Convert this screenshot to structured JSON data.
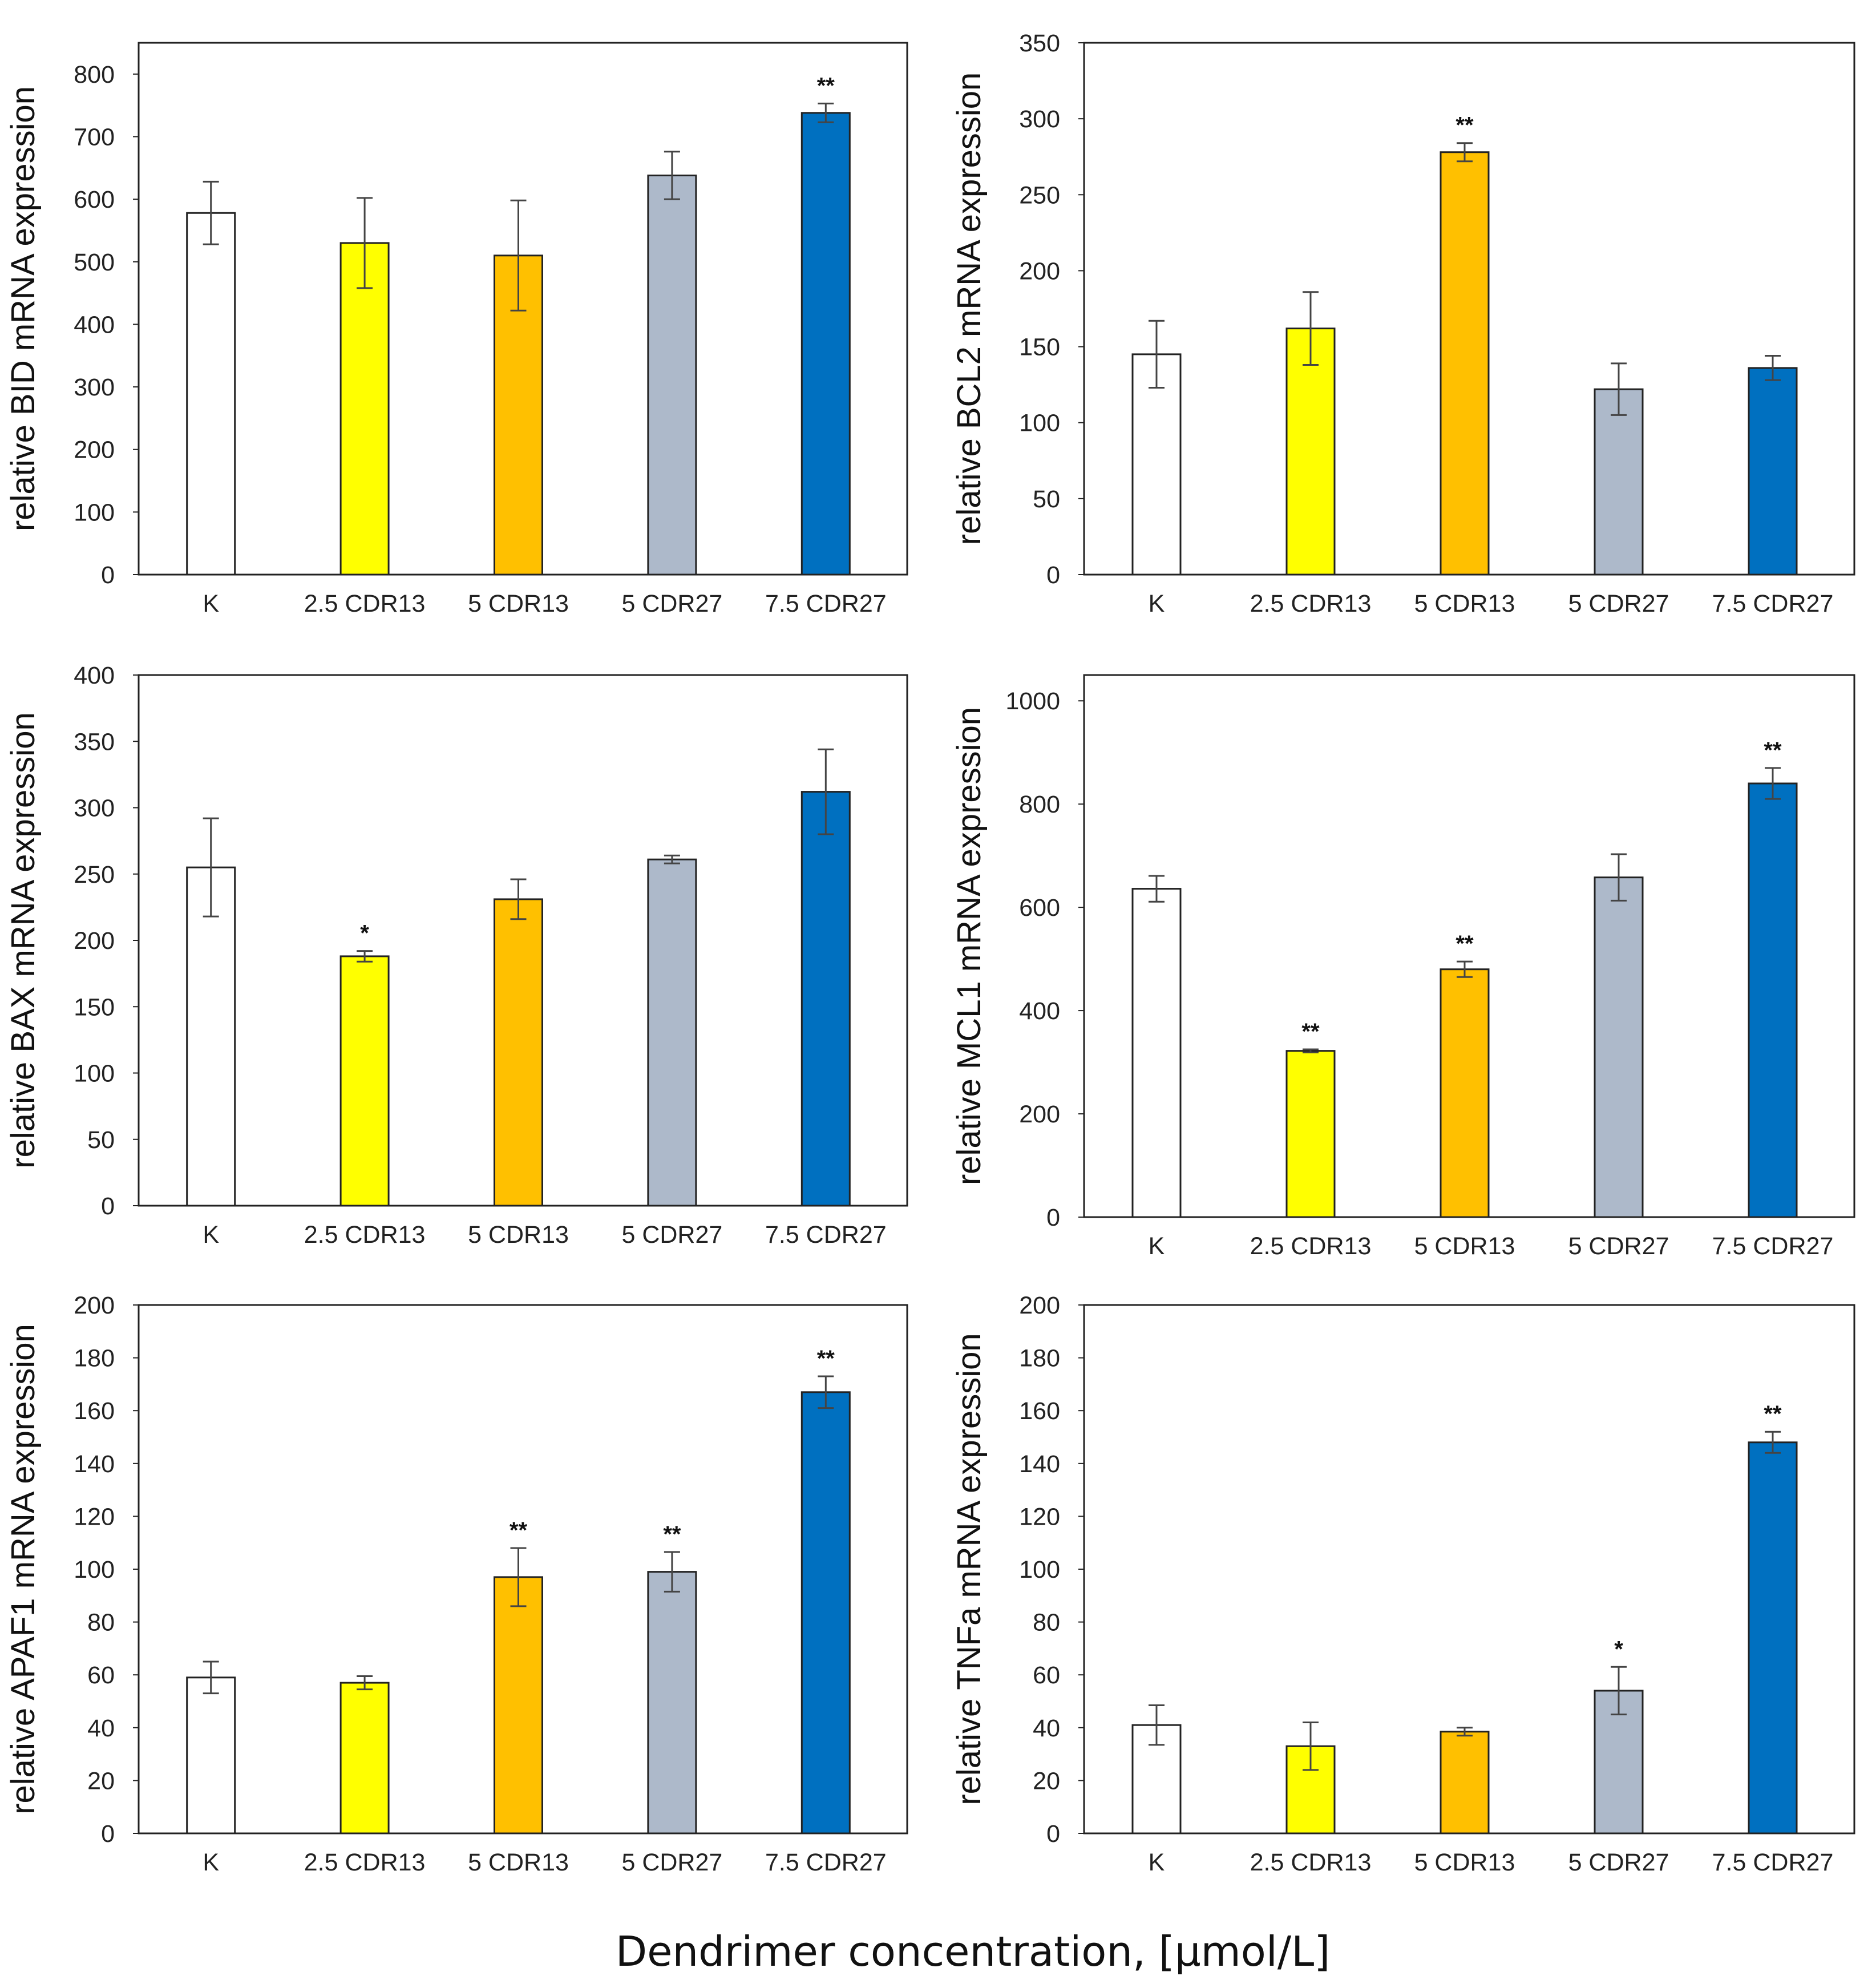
{
  "x_title": "Dendrimer concentration, [µmol/L]",
  "colors": {
    "K": "#ffffff",
    "2.5 CDR13": "#ffff00",
    "5 CDR13": "#ffc000",
    "5 CDR27": "#adb9ca",
    "7.5 CDR27": "#0070c0"
  },
  "chart_data": [
    {
      "type": "bar",
      "ylabel": "relative BID mRNA expression",
      "categories": [
        "K",
        "2.5 CDR13",
        "5 CDR13",
        "5 CDR27",
        "7.5 CDR27"
      ],
      "values": [
        578,
        530,
        510,
        638,
        738
      ],
      "errors": [
        50,
        72,
        88,
        38,
        15
      ],
      "significance": [
        "",
        "",
        "",
        "",
        "**"
      ],
      "ylim": [
        0,
        850
      ],
      "yticks": [
        0,
        100,
        200,
        300,
        400,
        500,
        600,
        700,
        800
      ]
    },
    {
      "type": "bar",
      "ylabel": "relative BCL2 mRNA expression",
      "categories": [
        "K",
        "2.5 CDR13",
        "5 CDR13",
        "5 CDR27",
        "7.5 CDR27"
      ],
      "values": [
        145,
        162,
        278,
        122,
        136
      ],
      "errors": [
        22,
        24,
        6,
        17,
        8
      ],
      "significance": [
        "",
        "",
        "**",
        "",
        ""
      ],
      "ylim": [
        0,
        350
      ],
      "yticks": [
        0,
        50,
        100,
        150,
        200,
        250,
        300,
        350
      ]
    },
    {
      "type": "bar",
      "ylabel": "relative BAX mRNA expression",
      "categories": [
        "K",
        "2.5 CDR13",
        "5 CDR13",
        "5 CDR27",
        "7.5 CDR27"
      ],
      "values": [
        255,
        188,
        231,
        261,
        312
      ],
      "errors": [
        37,
        4,
        15,
        3,
        32
      ],
      "significance": [
        "",
        "*",
        "",
        "",
        ""
      ],
      "ylim": [
        0,
        400
      ],
      "yticks": [
        0,
        50,
        100,
        150,
        200,
        250,
        300,
        350,
        400
      ]
    },
    {
      "type": "bar",
      "ylabel": "relative  MCL1 mRNA expression",
      "categories": [
        "K",
        "2.5 CDR13",
        "5 CDR13",
        "5 CDR27",
        "7.5 CDR27"
      ],
      "values": [
        636,
        322,
        480,
        658,
        840
      ],
      "errors": [
        25,
        3,
        15,
        45,
        30
      ],
      "significance": [
        "",
        "**",
        "**",
        "",
        "**"
      ],
      "ylim": [
        0,
        1050
      ],
      "yticks": [
        0,
        200,
        400,
        600,
        800,
        1000
      ]
    },
    {
      "type": "bar",
      "ylabel": "relative APAF1 mRNA expression",
      "categories": [
        "K",
        "2.5 CDR13",
        "5 CDR13",
        "5 CDR27",
        "7.5 CDR27"
      ],
      "values": [
        59,
        57,
        97,
        99,
        167
      ],
      "errors": [
        6,
        2.5,
        11,
        7.5,
        6
      ],
      "significance": [
        "",
        "",
        "**",
        "**",
        "**"
      ],
      "ylim": [
        0,
        200
      ],
      "yticks": [
        0,
        20,
        40,
        60,
        80,
        100,
        120,
        140,
        160,
        180,
        200
      ]
    },
    {
      "type": "bar",
      "ylabel": "relative TNFa mRNA expression",
      "categories": [
        "K",
        "2.5 CDR13",
        "5 CDR13",
        "5 CDR27",
        "7.5 CDR27"
      ],
      "values": [
        41,
        33,
        38.5,
        54,
        148
      ],
      "errors": [
        7.5,
        9,
        1.5,
        9,
        4
      ],
      "significance": [
        "",
        "",
        "",
        "*",
        "**"
      ],
      "ylim": [
        0,
        200
      ],
      "yticks": [
        0,
        20,
        40,
        60,
        80,
        100,
        120,
        140,
        160,
        180,
        200
      ]
    }
  ]
}
